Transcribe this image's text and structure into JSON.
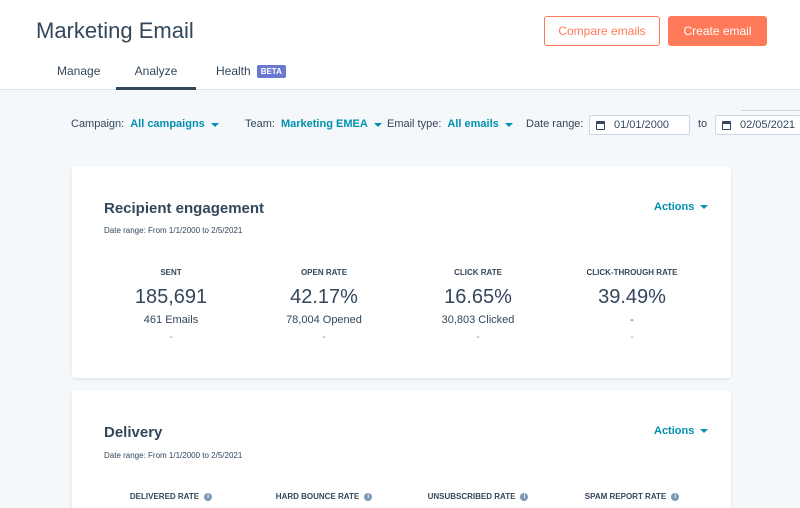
{
  "header": {
    "title": "Marketing Email",
    "compare_label": "Compare emails",
    "create_label": "Create email"
  },
  "tabs": [
    {
      "label": "Manage"
    },
    {
      "label": "Analyze",
      "active": true
    },
    {
      "label": "Health",
      "badge": "BETA"
    }
  ],
  "filters": {
    "campaign_label": "Campaign:",
    "campaign_value": "All campaigns",
    "team_label": "Team:",
    "team_value": "Marketing EMEA",
    "type_label": "Email type:",
    "type_value": "All emails",
    "date_label": "Date range:",
    "date_from": "01/01/2000",
    "to_label": "to",
    "date_to": "02/05/2021"
  },
  "engagement": {
    "title": "Recipient engagement",
    "date_range": "Date range: From 1/1/2000 to 2/5/2021",
    "actions_label": "Actions",
    "metrics": [
      {
        "label": "SENT",
        "value": "185,691",
        "sub": "461 Emails",
        "dash": "-"
      },
      {
        "label": "OPEN RATE",
        "value": "42.17%",
        "sub": "78,004 Opened",
        "dash": "-"
      },
      {
        "label": "CLICK RATE",
        "value": "16.65%",
        "sub": "30,803 Clicked",
        "dash": "-"
      },
      {
        "label": "CLICK-THROUGH RATE",
        "value": "39.49%",
        "sub": "-",
        "dash": "-"
      }
    ]
  },
  "delivery": {
    "title": "Delivery",
    "date_range": "Date range: From 1/1/2000 to 2/5/2021",
    "actions_label": "Actions",
    "metrics": [
      {
        "label": "DELIVERED RATE"
      },
      {
        "label": "HARD BOUNCE RATE"
      },
      {
        "label": "UNSUBSCRIBED RATE"
      },
      {
        "label": "SPAM REPORT RATE"
      }
    ]
  },
  "colors": {
    "accent": "#ff7a59",
    "link": "#0091ae",
    "text": "#33475b",
    "beta": "#6a78d1"
  }
}
